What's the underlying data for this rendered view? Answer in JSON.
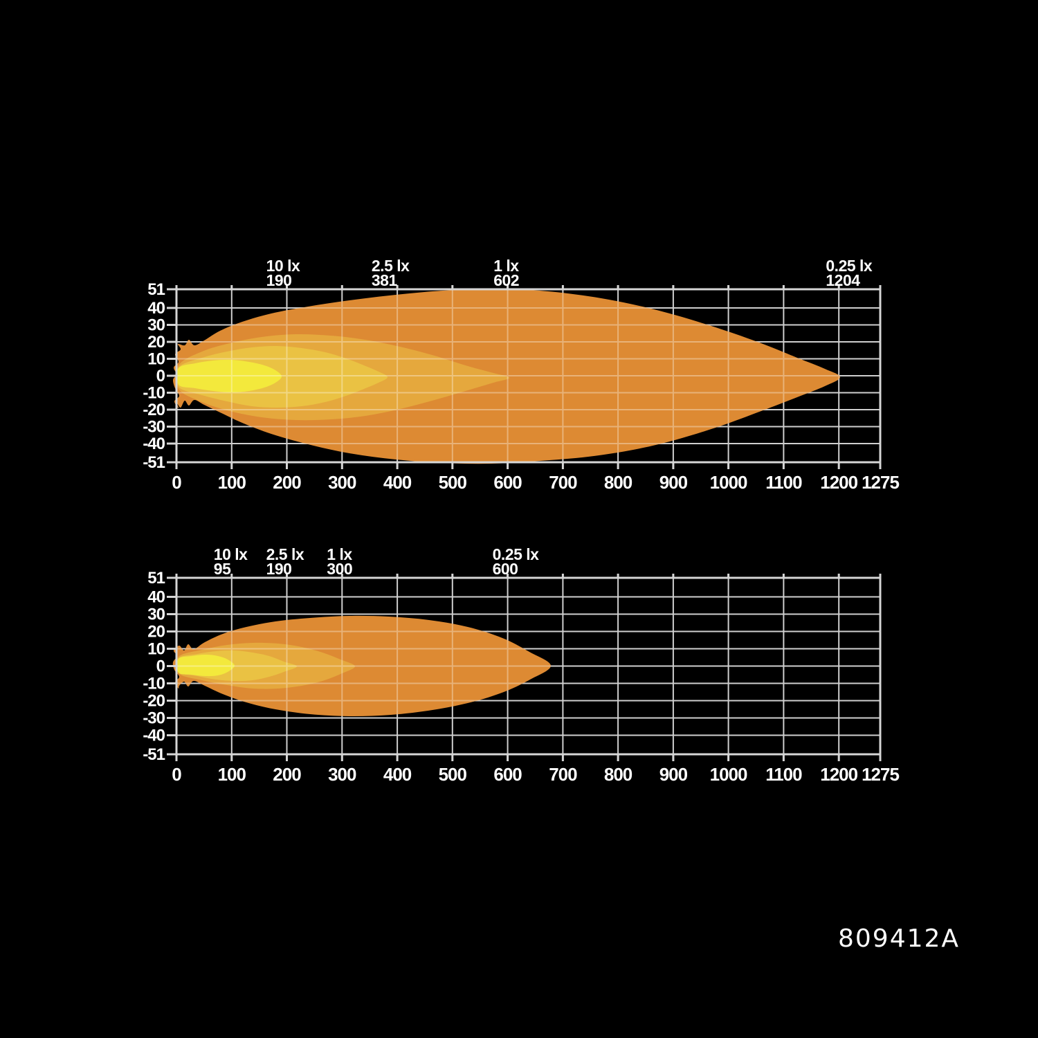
{
  "part_number": "809412A",
  "colors": {
    "background": "#000000",
    "grid": "#cfcfcf",
    "grid_over_beam": "rgba(255,255,255,0.34)",
    "axis_text": "#ffffff",
    "contour_colors": {
      "10 lx": "#f3e93c",
      "2.5 lx": "#eac243",
      "1 lx": "#e5a83d",
      "0.25 lx": "#dd8a33"
    }
  },
  "chart_data": [
    {
      "type": "area",
      "name": "beam-pattern-top",
      "grid": true,
      "xlim": [
        0,
        1275
      ],
      "ylim": [
        -51,
        51
      ],
      "x_ticks": [
        0,
        100,
        200,
        300,
        400,
        500,
        600,
        700,
        800,
        900,
        1000,
        1100,
        1200,
        1275
      ],
      "y_ticks": [
        51,
        40,
        30,
        20,
        10,
        0,
        -10,
        -20,
        -30,
        -40,
        -51
      ],
      "contour_annotations": [
        {
          "lux": "10 lx",
          "distance_m": 190
        },
        {
          "lux": "2.5 lx",
          "distance_m": 381
        },
        {
          "lux": "1 lx",
          "distance_m": 602
        },
        {
          "lux": "0.25 lx",
          "distance_m": 1204
        }
      ]
    },
    {
      "type": "area",
      "name": "beam-pattern-bottom",
      "grid": true,
      "xlim": [
        0,
        1275
      ],
      "ylim": [
        -51,
        51
      ],
      "x_ticks": [
        0,
        100,
        200,
        300,
        400,
        500,
        600,
        700,
        800,
        900,
        1000,
        1100,
        1200,
        1275
      ],
      "y_ticks": [
        51,
        40,
        30,
        20,
        10,
        0,
        -10,
        -20,
        -30,
        -40,
        -51
      ],
      "contour_annotations": [
        {
          "lux": "10 lx",
          "distance_m": 95
        },
        {
          "lux": "2.5 lx",
          "distance_m": 190
        },
        {
          "lux": "1 lx",
          "distance_m": 300
        },
        {
          "lux": "0.25 lx",
          "distance_m": 600
        }
      ]
    }
  ]
}
